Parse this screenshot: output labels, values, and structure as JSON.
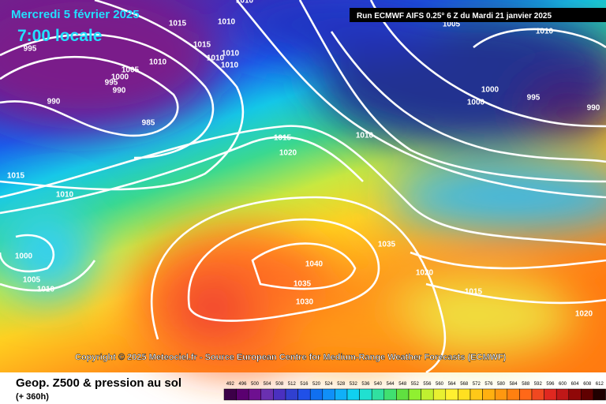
{
  "header": {
    "date": "Mercredi 5 février 2025",
    "time": "7:00 locale",
    "run": "Run ECMWF AIFS 0.25° 6 Z du Mardi 21 janvier 2025"
  },
  "copyright": "Copyright © 2025 Meteociel.fr - Source European Centre for Medium-Range Weather Forecasts (ECMWF)",
  "footer": {
    "title": "Geop. Z500 & pression au sol",
    "lead": "(+ 360h)"
  },
  "isobars": [
    "1010",
    "1005",
    "1010",
    "1015",
    "1010",
    "995",
    "1015",
    "1010",
    "1010",
    "1010",
    "1010",
    "1005",
    "1000",
    "995",
    "990",
    "990",
    "985",
    "1000",
    "995",
    "990",
    "1000",
    "1015",
    "1010",
    "1020",
    "1015",
    "1010",
    "1000",
    "1035",
    "1005",
    "1010",
    "1040",
    "1020",
    "1035",
    "1015",
    "1030",
    "1020"
  ],
  "scale": [
    "492",
    "496",
    "500",
    "504",
    "508",
    "512",
    "516",
    "520",
    "524",
    "528",
    "532",
    "536",
    "540",
    "544",
    "548",
    "552",
    "556",
    "560",
    "564",
    "568",
    "572",
    "576",
    "580",
    "584",
    "588",
    "592",
    "596",
    "600",
    "604",
    "608",
    "612"
  ]
}
